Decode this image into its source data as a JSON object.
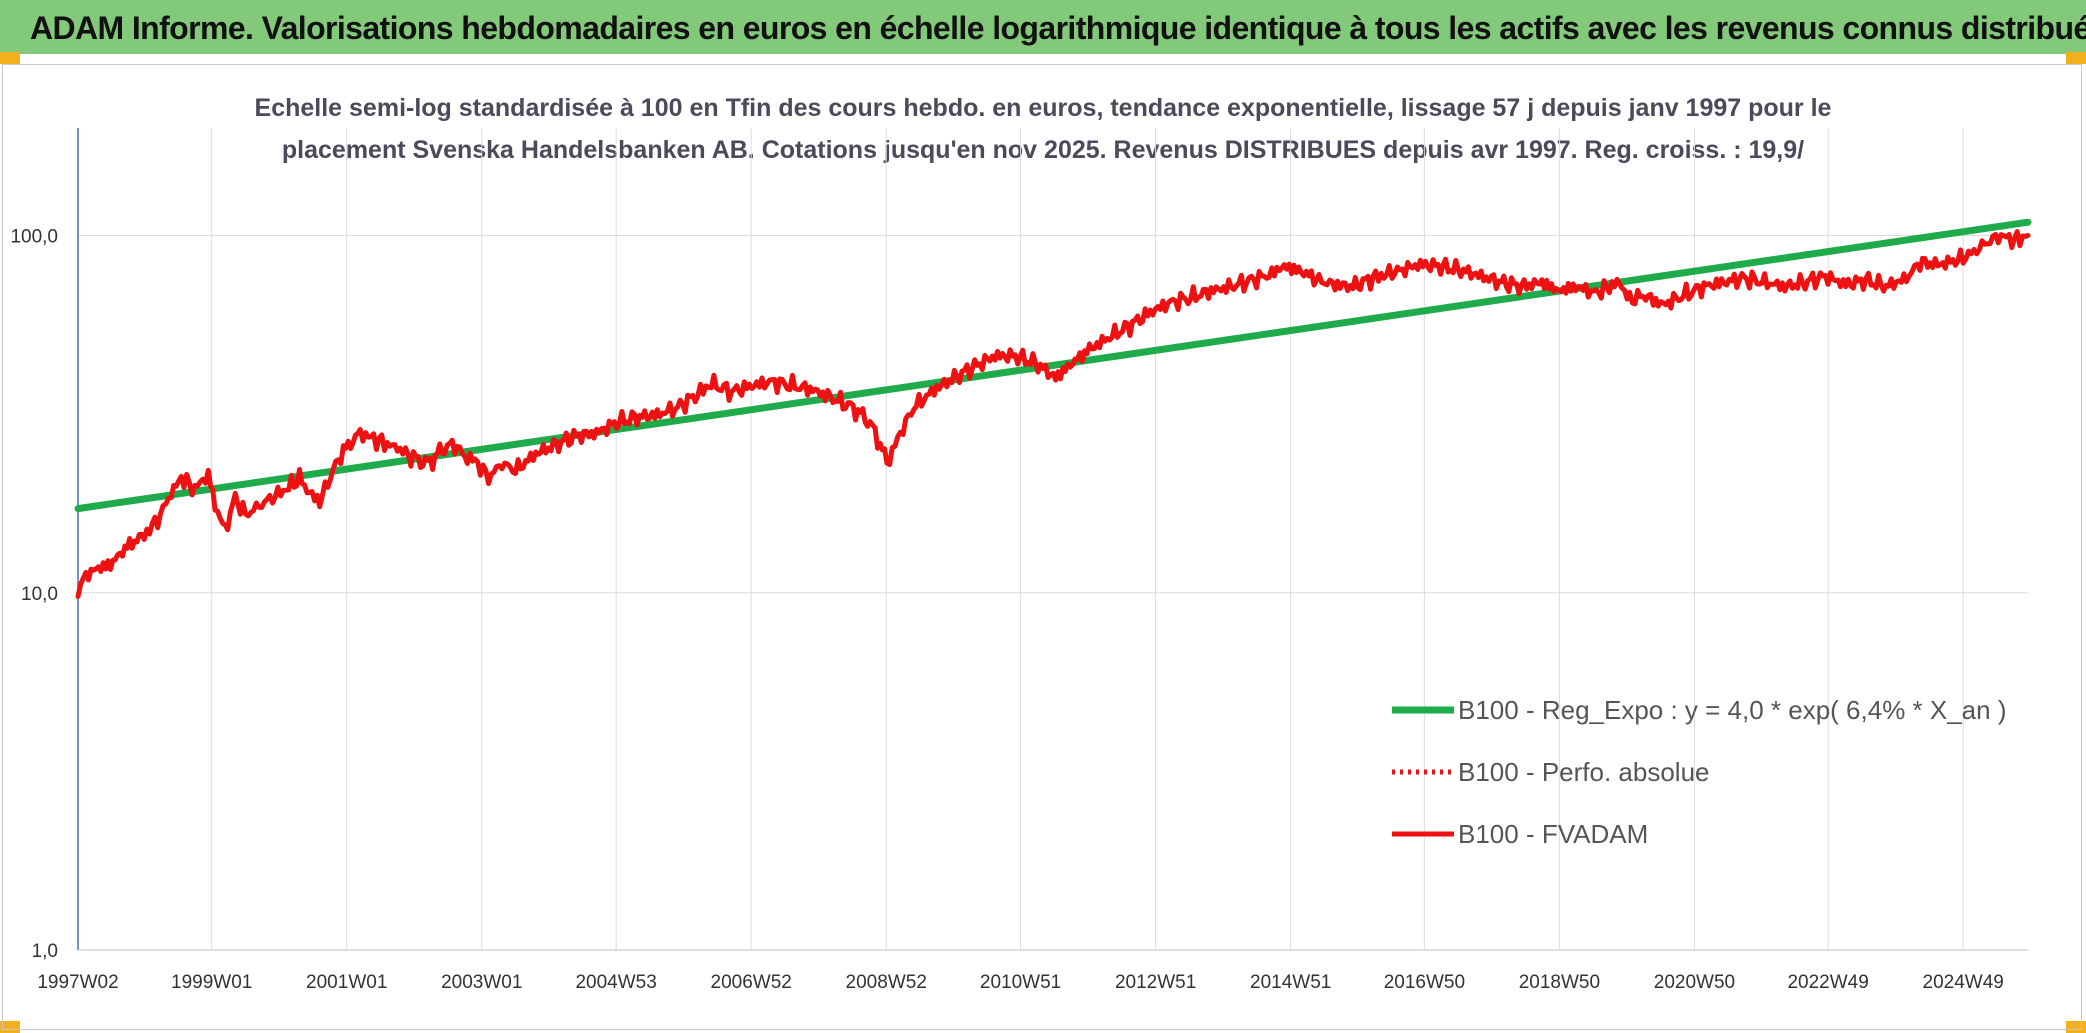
{
  "header": {
    "title": "ADAM Informe. Valorisations hebdomadaires en euros en échelle logarithmique identique à tous les actifs avec les revenus connus distribués"
  },
  "colors": {
    "header_band": "#82c97a",
    "regression": "#1faa4b",
    "fvadam": "#ee1111",
    "perfo": "#ee1111",
    "corner_tabs": "#f2b01e"
  },
  "chart_data": {
    "type": "line",
    "title_lines": [
      "Echelle semi-log standardisée à 100 en Tfin des cours hebdo. en euros, tendance exponentielle, lissage 57 j depuis janv 1997 pour le",
      "placement Svenska Handelsbanken AB. Cotations jusqu'en nov 2025. Revenus DISTRIBUES depuis avr 1997. Reg. croiss. : 19,9/"
    ],
    "y_scale": "log",
    "ylim": [
      1,
      200
    ],
    "y_ticks": [
      {
        "value": 1,
        "label": "1,0"
      },
      {
        "value": 10,
        "label": "10,0"
      },
      {
        "value": 100,
        "label": "100,0"
      }
    ],
    "xlim": [
      1997.02,
      2025.9
    ],
    "x_ticks": [
      {
        "value": 1997.02,
        "label": "1997W02"
      },
      {
        "value": 1999.0,
        "label": "1999W01"
      },
      {
        "value": 2001.0,
        "label": "2001W01"
      },
      {
        "value": 2003.0,
        "label": "2003W01"
      },
      {
        "value": 2004.99,
        "label": "2004W53"
      },
      {
        "value": 2006.99,
        "label": "2006W52"
      },
      {
        "value": 2008.99,
        "label": "2008W52"
      },
      {
        "value": 2010.98,
        "label": "2010W51"
      },
      {
        "value": 2012.98,
        "label": "2012W51"
      },
      {
        "value": 2014.98,
        "label": "2014W51"
      },
      {
        "value": 2016.96,
        "label": "2016W50"
      },
      {
        "value": 2018.96,
        "label": "2018W50"
      },
      {
        "value": 2020.96,
        "label": "2020W50"
      },
      {
        "value": 2022.94,
        "label": "2022W49"
      },
      {
        "value": 2024.94,
        "label": "2024W49"
      }
    ],
    "grid": {
      "vertical": true,
      "horizontal": true
    },
    "legend_position": "bottom-right",
    "series": [
      {
        "name": "B100 - Reg_Expo : y = 4,0 * exp( 6,4% *  X_an )",
        "style": "solid-green",
        "x": [
          1997.02,
          2025.9
        ],
        "values": [
          17.2,
          109.0
        ]
      },
      {
        "name": "B100 - Perfo. absolue",
        "style": "dotted-red",
        "x": [],
        "values": []
      },
      {
        "name": "B100 - FVADAM",
        "style": "solid-red",
        "x": [
          1997.02,
          1997.1,
          1997.25,
          1997.5,
          1997.75,
          1998.0,
          1998.2,
          1998.4,
          1998.55,
          1998.75,
          1998.95,
          1999.05,
          1999.2,
          1999.35,
          1999.5,
          1999.7,
          1999.9,
          2000.1,
          2000.3,
          2000.45,
          2000.6,
          2000.8,
          2000.95,
          2001.2,
          2001.4,
          2001.6,
          2001.75,
          2001.95,
          2002.2,
          2002.45,
          2002.6,
          2002.75,
          2002.9,
          2003.1,
          2003.3,
          2003.5,
          2003.8,
          2004.1,
          2004.4,
          2004.7,
          2005.0,
          2005.3,
          2005.6,
          2005.9,
          2006.2,
          2006.4,
          2006.7,
          2007.0,
          2007.3,
          2007.6,
          2007.9,
          2008.2,
          2008.5,
          2008.75,
          2008.9,
          2009.0,
          2009.2,
          2009.4,
          2009.7,
          2010.0,
          2010.3,
          2010.6,
          2010.9,
          2011.2,
          2011.5,
          2011.75,
          2012.0,
          2012.3,
          2012.6,
          2012.9,
          2013.2,
          2013.5,
          2013.8,
          2014.1,
          2014.4,
          2014.7,
          2014.85,
          2015.1,
          2015.4,
          2015.6,
          2015.9,
          2016.2,
          2016.6,
          2016.9,
          2017.2,
          2017.5,
          2017.8,
          2018.1,
          2018.4,
          2018.7,
          2018.95,
          2019.2,
          2019.5,
          2019.7,
          2019.85,
          2020.0,
          2020.2,
          2020.5,
          2020.8,
          2021.1,
          2021.4,
          2021.7,
          2022.0,
          2022.3,
          2022.6,
          2022.9,
          2023.2,
          2023.5,
          2023.8,
          2024.1,
          2024.3,
          2024.6,
          2024.9,
          2025.1,
          2025.3,
          2025.5,
          2025.7,
          2025.9
        ],
        "values": [
          10.0,
          11.0,
          11.6,
          12.0,
          13.5,
          14.5,
          16.0,
          19.0,
          21.0,
          19.5,
          21.5,
          17.5,
          15.0,
          18.5,
          16.5,
          17.5,
          18.5,
          19.5,
          21.0,
          19.0,
          18.0,
          22.0,
          25.0,
          28.0,
          27.0,
          26.0,
          25.5,
          24.0,
          23.0,
          25.5,
          26.0,
          24.0,
          23.5,
          21.0,
          23.0,
          22.0,
          24.5,
          26.0,
          27.5,
          28.0,
          30.0,
          31.0,
          31.5,
          33.0,
          36.0,
          38.5,
          36.5,
          38.0,
          39.0,
          38.0,
          37.0,
          35.0,
          33.0,
          30.0,
          26.0,
          23.0,
          28.0,
          33.0,
          37.0,
          40.0,
          43.0,
          46.0,
          46.0,
          44.0,
          40.0,
          44.0,
          48.0,
          52.0,
          56.0,
          61.0,
          65.0,
          67.0,
          70.0,
          72.0,
          75.0,
          78.0,
          82.0,
          80.0,
          75.0,
          73.0,
          72.0,
          76.0,
          80.0,
          83.0,
          82.0,
          80.0,
          77.0,
          74.0,
          72.0,
          74.0,
          70.0,
          72.0,
          69.0,
          72.0,
          74.0,
          66.0,
          68.0,
          64.0,
          68.0,
          72.0,
          74.0,
          76.0,
          74.0,
          72.0,
          74.0,
          77.0,
          73.0,
          75.0,
          72.0,
          76.0,
          84.0,
          83.0,
          86.0,
          90.0,
          96.0,
          100.0,
          97.0,
          100.0
        ]
      }
    ]
  }
}
